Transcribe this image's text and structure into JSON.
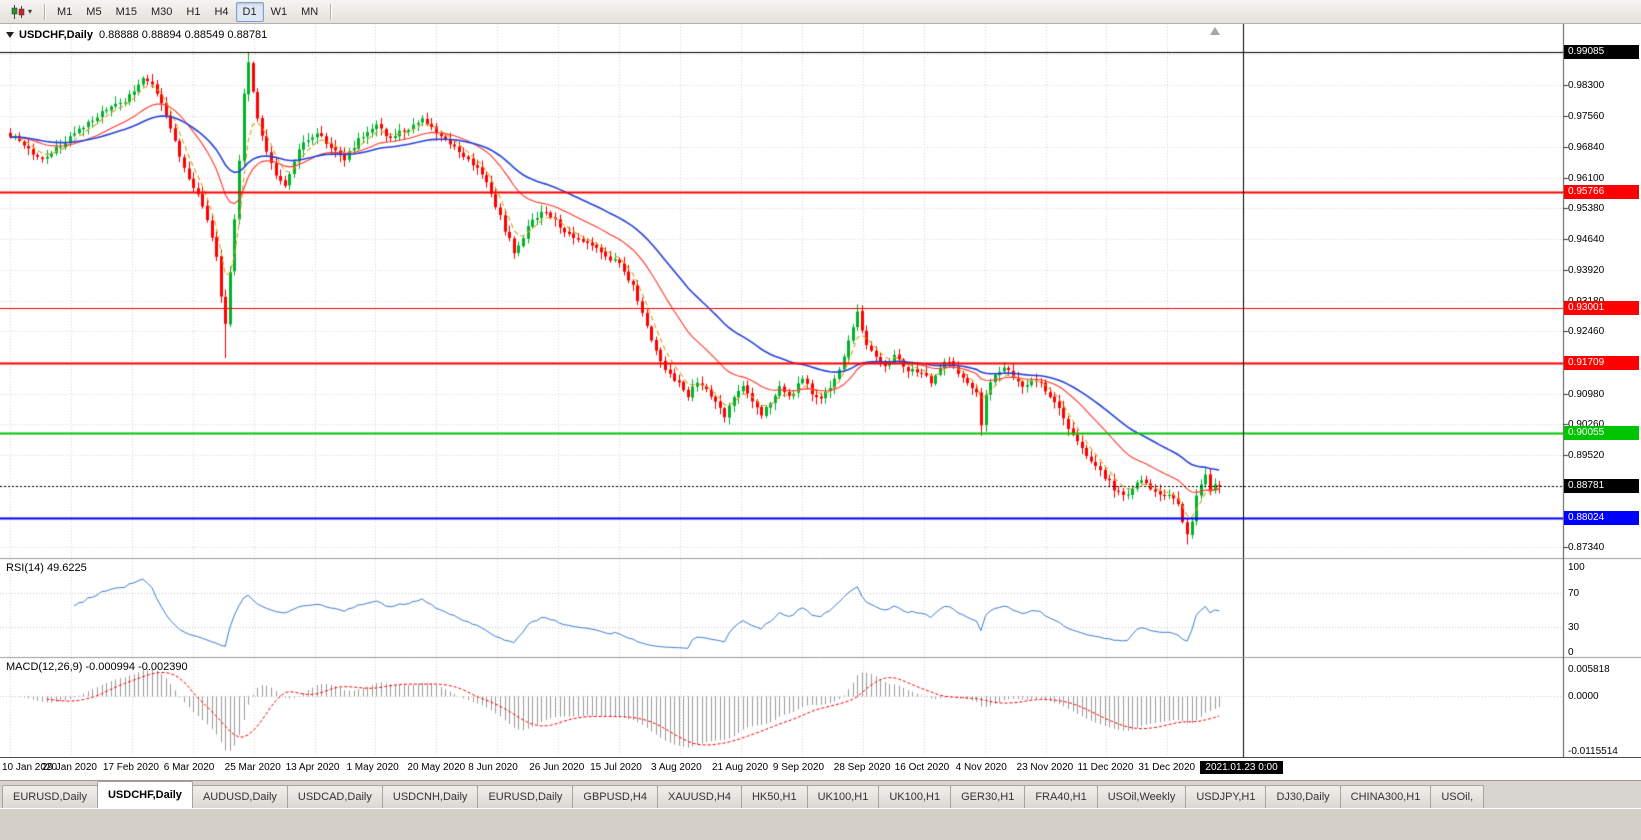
{
  "app": {
    "platform_bg": "#d4d0c8"
  },
  "toolbar": {
    "chart_type_button": {
      "icon": "candlestick-chart-icon",
      "caret": "▾"
    },
    "timeframes": [
      "M1",
      "M5",
      "M15",
      "M30",
      "H1",
      "H4",
      "D1",
      "W1",
      "MN"
    ],
    "active_timeframe": "D1"
  },
  "chart": {
    "symbol_title": "USDCHF,Daily",
    "ohlc_text": "0.88888 0.88894 0.88549 0.88781",
    "current_bid": "0.88781",
    "price_axis_labels": [
      "0.98300",
      "0.97560",
      "0.96840",
      "0.96100",
      "0.95380",
      "0.94640",
      "0.93920",
      "0.93180",
      "0.92460",
      "0.90980",
      "0.90260",
      "0.89520",
      "0.87340"
    ],
    "hidden_grid_values": [
      0.9904,
      0.9174,
      0.8878,
      0.8806
    ],
    "price_lines": [
      {
        "price": 0.99085,
        "label": "0.99085",
        "color": "#000000",
        "width": 1,
        "style": "solid"
      },
      {
        "price": 0.95766,
        "label": "0.95766",
        "color": "#ff0000",
        "width": 2,
        "style": "solid"
      },
      {
        "price": 0.93001,
        "label": "0.93001",
        "color": "#ff0000",
        "width": 1,
        "style": "solid"
      },
      {
        "price": 0.91709,
        "label": "0.91709",
        "color": "#ff0000",
        "width": 2,
        "style": "solid"
      },
      {
        "price": 0.90055,
        "label": "0.90055",
        "color": "#00c400",
        "width": 2,
        "style": "solid"
      },
      {
        "price": 0.88781,
        "label": "0.88781",
        "color": "#000000",
        "width": 1,
        "style": "dot",
        "role": "bid-price-line"
      },
      {
        "price": 0.88024,
        "label": "0.88024",
        "color": "#0000ff",
        "width": 2,
        "style": "solid"
      }
    ],
    "vertical_line": {
      "label": "2021.01.23 0:00",
      "day_index": 269.3
    },
    "date_labels": [
      "10 Jan 2020",
      "29 Jan 2020",
      "17 Feb 2020",
      "6 Mar 2020",
      "25 Mar 2020",
      "13 Apr 2020",
      "1 May 2020",
      "20 May 2020",
      "8 Jun 2020",
      "26 Jun 2020",
      "15 Jul 2020",
      "3 Aug 2020",
      "21 Aug 2020",
      "9 Sep 2020",
      "28 Sep 2020",
      "16 Oct 2020",
      "4 Nov 2020",
      "23 Nov 2020",
      "11 Dec 2020",
      "31 Dec 2020"
    ],
    "candle_colors": {
      "bull": "#00b22d",
      "bear": "#ff0000"
    }
  },
  "indicators": {
    "rsi": {
      "label": "RSI(14) 49.6225",
      "period": 14,
      "current": 49.6225,
      "levels": [
        "100",
        "70",
        "30",
        "0"
      ],
      "line_color": "#3c7fd0"
    },
    "macd": {
      "label": "MACD(12,26,9) -0.000994 -0.002390",
      "fast": 12,
      "slow": 26,
      "signal": 9,
      "values": [
        -0.000994,
        -0.00239
      ],
      "axis_labels": [
        "0.005818",
        "0.0000",
        "-0.0115514"
      ],
      "max": 0.005818,
      "min": -0.0115514,
      "histogram_color": "#9c9c9c",
      "signal_color": "#ff0000"
    }
  },
  "chart_data": {
    "type": "candlestick",
    "symbol": "USDCHF",
    "timeframe": "Daily",
    "x_range": [
      "10 Jan 2020",
      "23 Jan 2021"
    ],
    "ylim": [
      0.871,
      0.9975
    ],
    "candle_count": 265,
    "price_path_anchors": [
      [
        0,
        0.9712
      ],
      [
        3,
        0.9688
      ],
      [
        6,
        0.9656
      ],
      [
        9,
        0.9668
      ],
      [
        13,
        0.9706
      ],
      [
        17,
        0.974
      ],
      [
        21,
        0.977
      ],
      [
        25,
        0.9792
      ],
      [
        29,
        0.9845
      ],
      [
        31,
        0.9826
      ],
      [
        33,
        0.9786
      ],
      [
        35,
        0.9726
      ],
      [
        37,
        0.966
      ],
      [
        39,
        0.9612
      ],
      [
        41,
        0.9568
      ],
      [
        43,
        0.9505
      ],
      [
        45,
        0.9418
      ],
      [
        46,
        0.9332
      ],
      [
        47,
        0.926
      ],
      [
        48,
        0.939
      ],
      [
        49,
        0.9508
      ],
      [
        50,
        0.965
      ],
      [
        51,
        0.9805
      ],
      [
        52,
        0.9878
      ],
      [
        53,
        0.982
      ],
      [
        54,
        0.9752
      ],
      [
        56,
        0.9672
      ],
      [
        58,
        0.961
      ],
      [
        60,
        0.959
      ],
      [
        62,
        0.9648
      ],
      [
        64,
        0.9694
      ],
      [
        67,
        0.9716
      ],
      [
        70,
        0.9684
      ],
      [
        73,
        0.9654
      ],
      [
        76,
        0.9702
      ],
      [
        80,
        0.9732
      ],
      [
        83,
        0.9704
      ],
      [
        86,
        0.9724
      ],
      [
        90,
        0.9746
      ],
      [
        93,
        0.9716
      ],
      [
        96,
        0.9692
      ],
      [
        99,
        0.9664
      ],
      [
        102,
        0.9634
      ],
      [
        104,
        0.9602
      ],
      [
        106,
        0.9545
      ],
      [
        108,
        0.9486
      ],
      [
        110,
        0.9436
      ],
      [
        112,
        0.9472
      ],
      [
        114,
        0.951
      ],
      [
        117,
        0.953
      ],
      [
        120,
        0.9494
      ],
      [
        123,
        0.9472
      ],
      [
        126,
        0.9452
      ],
      [
        129,
        0.9434
      ],
      [
        132,
        0.9412
      ],
      [
        134,
        0.9392
      ],
      [
        136,
        0.935
      ],
      [
        138,
        0.9295
      ],
      [
        140,
        0.923
      ],
      [
        142,
        0.9175
      ],
      [
        144,
        0.9142
      ],
      [
        146,
        0.912
      ],
      [
        148,
        0.9094
      ],
      [
        150,
        0.913
      ],
      [
        152,
        0.911
      ],
      [
        154,
        0.9074
      ],
      [
        156,
        0.9044
      ],
      [
        158,
        0.909
      ],
      [
        160,
        0.912
      ],
      [
        162,
        0.9084
      ],
      [
        164,
        0.9044
      ],
      [
        166,
        0.908
      ],
      [
        168,
        0.911
      ],
      [
        170,
        0.909
      ],
      [
        173,
        0.913
      ],
      [
        176,
        0.9084
      ],
      [
        178,
        0.91
      ],
      [
        181,
        0.915
      ],
      [
        183,
        0.922
      ],
      [
        185,
        0.9292
      ],
      [
        186,
        0.9245
      ],
      [
        187,
        0.9215
      ],
      [
        189,
        0.9185
      ],
      [
        191,
        0.9162
      ],
      [
        193,
        0.9185
      ],
      [
        196,
        0.9152
      ],
      [
        199,
        0.915
      ],
      [
        201,
        0.9128
      ],
      [
        203,
        0.9158
      ],
      [
        205,
        0.9178
      ],
      [
        207,
        0.915
      ],
      [
        209,
        0.912
      ],
      [
        211,
        0.9098
      ],
      [
        212,
        0.9028
      ],
      [
        213,
        0.9095
      ],
      [
        215,
        0.9142
      ],
      [
        217,
        0.9162
      ],
      [
        219,
        0.9135
      ],
      [
        221,
        0.9112
      ],
      [
        224,
        0.913
      ],
      [
        226,
        0.9108
      ],
      [
        228,
        0.9078
      ],
      [
        230,
        0.9038
      ],
      [
        232,
        0.8998
      ],
      [
        234,
        0.8968
      ],
      [
        236,
        0.8938
      ],
      [
        239,
        0.8902
      ],
      [
        241,
        0.8872
      ],
      [
        243,
        0.8852
      ],
      [
        245,
        0.8878
      ],
      [
        247,
        0.8898
      ],
      [
        249,
        0.8868
      ],
      [
        251,
        0.8852
      ],
      [
        253,
        0.8862
      ],
      [
        255,
        0.883
      ],
      [
        256,
        0.8795
      ],
      [
        257,
        0.8765
      ],
      [
        258,
        0.88
      ],
      [
        259,
        0.885
      ],
      [
        260,
        0.8888
      ],
      [
        261,
        0.8905
      ],
      [
        262,
        0.8862
      ],
      [
        263,
        0.8885
      ],
      [
        264,
        0.8878
      ]
    ],
    "forced_extremes": [
      {
        "index": 47,
        "low": 0.9182
      },
      {
        "index": 52,
        "high": 0.99085
      },
      {
        "index": 185,
        "high": 0.931
      },
      {
        "index": 212,
        "low": 0.8998
      },
      {
        "index": 257,
        "low": 0.874
      }
    ],
    "moving_averages": [
      {
        "period": 5,
        "color": "#d8a21a",
        "style": "dash"
      },
      {
        "period": 20,
        "color": "#ff3b30",
        "style": "solid"
      },
      {
        "period": 40,
        "color": "#2743d9",
        "style": "solid"
      }
    ]
  },
  "tabbar": {
    "tabs": [
      "EURUSD,Daily",
      "USDCHF,Daily",
      "AUDUSD,Daily",
      "USDCAD,Daily",
      "USDCNH,Daily",
      "EURUSD,Daily",
      "GBPUSD,H4",
      "XAUUSD,H4",
      "HK50,H1",
      "UK100,H1",
      "UK100,H1",
      "GER30,H1",
      "FRA40,H1",
      "USOil,Weekly",
      "USDJPY,H1",
      "DJ30,Daily",
      "CHINA300,H1",
      "USOil,"
    ],
    "active_index": 1
  }
}
